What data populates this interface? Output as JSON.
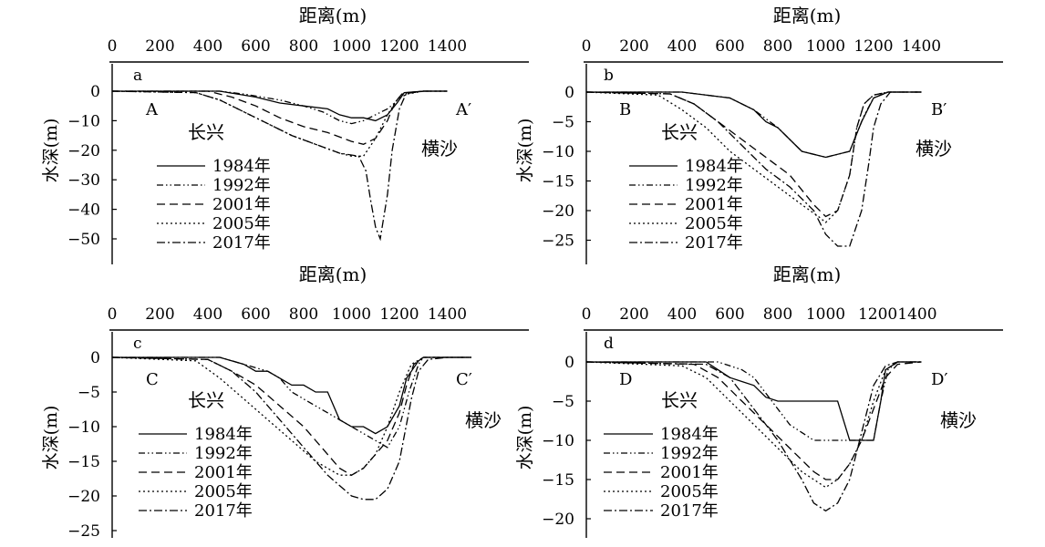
{
  "figure": {
    "description_free": true
  },
  "chart_data": [
    {
      "type": "line",
      "panel_letter": "a",
      "xlabel": "距离(m)",
      "ylabel": "水深(m)",
      "xticks": [
        "0",
        "200",
        "400",
        "600",
        "800",
        "1000",
        "1200",
        "1400"
      ],
      "yticks": [
        "0",
        "−10",
        "−20",
        "−30",
        "−40",
        "−50"
      ],
      "xlim": [
        0,
        1500
      ],
      "ylim": [
        -55,
        3
      ],
      "start_label": "A",
      "end_label": "A′",
      "left_bank": "长兴",
      "right_bank": "横沙",
      "legend_position": "lower-left",
      "series": [
        {
          "name": "1984年",
          "style": "solid",
          "x": [
            0,
            450,
            600,
            700,
            800,
            900,
            950,
            1000,
            1050,
            1100,
            1150,
            1190,
            1220,
            1300,
            1400
          ],
          "y": [
            0,
            0,
            -2,
            -4,
            -5,
            -6,
            -8,
            -9,
            -9,
            -10,
            -8,
            -4,
            -0.5,
            0,
            0
          ]
        },
        {
          "name": "1992年",
          "style": "dashdotdot",
          "x": [
            0,
            450,
            550,
            700,
            800,
            880,
            950,
            1000,
            1050,
            1100,
            1150,
            1180,
            1210,
            1300,
            1400
          ],
          "y": [
            0,
            0,
            -1,
            -3,
            -5,
            -7,
            -10,
            -11,
            -10,
            -8,
            -6,
            -4,
            -1,
            0,
            0
          ]
        },
        {
          "name": "2001年",
          "style": "dash",
          "x": [
            0,
            400,
            500,
            600,
            700,
            800,
            900,
            1000,
            1050,
            1100,
            1150,
            1180,
            1210,
            1300,
            1400
          ],
          "y": [
            0,
            0,
            -2,
            -5,
            -9,
            -12,
            -14,
            -17,
            -18,
            -16,
            -10,
            -4,
            -1,
            0,
            0
          ]
        },
        {
          "name": "2005年",
          "style": "dot",
          "x": [
            0,
            350,
            450,
            550,
            650,
            750,
            850,
            950,
            1000,
            1050,
            1100,
            1150,
            1190,
            1230,
            1300,
            1400
          ],
          "y": [
            0,
            -0.5,
            -3,
            -7,
            -11,
            -15,
            -18,
            -21,
            -22,
            -22,
            -16,
            -8,
            -3,
            -1,
            0,
            0
          ]
        },
        {
          "name": "2017年",
          "style": "dashdot",
          "x": [
            0,
            350,
            450,
            550,
            650,
            750,
            850,
            950,
            1030,
            1060,
            1080,
            1100,
            1120,
            1150,
            1170,
            1200,
            1230,
            1300,
            1400
          ],
          "y": [
            0,
            -0.5,
            -3,
            -7,
            -11,
            -15,
            -18,
            -21,
            -22,
            -27,
            -37,
            -46,
            -50,
            -35,
            -20,
            -6,
            -0.5,
            0,
            0
          ]
        }
      ]
    },
    {
      "type": "line",
      "panel_letter": "b",
      "xlabel": "距离(m)",
      "ylabel": "水深(m)",
      "xticks": [
        "0",
        "200",
        "400",
        "600",
        "800",
        "1000",
        "1200",
        "1400"
      ],
      "yticks": [
        "0",
        "−5",
        "−10",
        "−15",
        "−20",
        "−25"
      ],
      "xlim": [
        0,
        1500
      ],
      "ylim": [
        -28,
        1.6
      ],
      "start_label": "B",
      "end_label": "B′",
      "left_bank": "长兴",
      "right_bank": "横沙",
      "legend_position": "lower-left",
      "series": [
        {
          "name": "1984年",
          "style": "solid",
          "x": [
            0,
            400,
            600,
            700,
            750,
            800,
            850,
            900,
            1000,
            1100,
            1120,
            1150,
            1200,
            1260,
            1300,
            1400
          ],
          "y": [
            0,
            0,
            -1,
            -3,
            -5,
            -6,
            -8,
            -10,
            -11,
            -10,
            -8,
            -5,
            -1,
            0,
            0,
            0
          ]
        },
        {
          "name": "1992年",
          "style": "dashdotdot",
          "x": [
            0,
            400,
            600,
            700,
            800,
            850,
            900,
            1000,
            1100,
            1130,
            1160,
            1200,
            1260,
            1300,
            1400
          ],
          "y": [
            0,
            0,
            -1,
            -3,
            -6,
            -8,
            -10,
            -11,
            -10,
            -7,
            -4,
            -1,
            0,
            0,
            0
          ]
        },
        {
          "name": "2001年",
          "style": "dash",
          "x": [
            0,
            350,
            450,
            550,
            650,
            750,
            850,
            950,
            1000,
            1050,
            1100,
            1130,
            1160,
            1200,
            1260,
            1300,
            1400
          ],
          "y": [
            0,
            -0.3,
            -2,
            -5,
            -8,
            -11,
            -14,
            -19,
            -21,
            -20,
            -14,
            -6,
            -2,
            -0.5,
            0,
            0,
            0
          ]
        },
        {
          "name": "2005年",
          "style": "dot",
          "x": [
            0,
            300,
            400,
            500,
            600,
            700,
            800,
            900,
            970,
            1000,
            1050,
            1100,
            1130,
            1160,
            1200,
            1260,
            1300,
            1400
          ],
          "y": [
            0,
            -0.5,
            -3,
            -6,
            -10,
            -13,
            -16,
            -19,
            -21,
            -22,
            -20,
            -14,
            -6,
            -2,
            -0.5,
            0,
            0,
            0
          ]
        },
        {
          "name": "2017年",
          "style": "dashdot",
          "x": [
            0,
            350,
            450,
            550,
            650,
            750,
            850,
            950,
            1000,
            1050,
            1100,
            1150,
            1180,
            1200,
            1230,
            1270,
            1300,
            1400
          ],
          "y": [
            0,
            -0.3,
            -2,
            -5,
            -9,
            -13,
            -16,
            -20,
            -24,
            -26,
            -26,
            -20,
            -12,
            -6,
            -2,
            0,
            0,
            0
          ]
        }
      ]
    },
    {
      "type": "line",
      "panel_letter": "c",
      "xlabel": "距离(m)",
      "ylabel": "水深(m)",
      "xticks": [
        "0",
        "200",
        "400",
        "600",
        "800",
        "1000",
        "1200",
        "1400"
      ],
      "yticks": [
        "0",
        "−5",
        "−10",
        "−15",
        "−20",
        "−25"
      ],
      "xlim": [
        0,
        1500
      ],
      "ylim": [
        -25,
        1.5
      ],
      "start_label": "C",
      "end_label": "C′",
      "left_bank": "长兴",
      "right_bank": "横沙",
      "legend_position": "lower-left",
      "series": [
        {
          "name": "1984年",
          "style": "solid",
          "x": [
            0,
            450,
            550,
            600,
            650,
            700,
            750,
            800,
            850,
            900,
            950,
            1000,
            1050,
            1100,
            1150,
            1200,
            1230,
            1280,
            1300,
            1400,
            1500
          ],
          "y": [
            0,
            0,
            -1,
            -2,
            -2,
            -3,
            -4,
            -4,
            -5,
            -5,
            -9,
            -10,
            -10,
            -11,
            -10,
            -7,
            -3,
            -0.5,
            0,
            0,
            0
          ]
        },
        {
          "name": "1992年",
          "style": "dashdotdot",
          "x": [
            0,
            450,
            550,
            650,
            700,
            750,
            800,
            850,
            900,
            950,
            1000,
            1050,
            1100,
            1150,
            1200,
            1240,
            1280,
            1300,
            1400,
            1500
          ],
          "y": [
            0,
            0,
            -1,
            -2,
            -3,
            -5,
            -6,
            -7,
            -8,
            -9,
            -10,
            -11,
            -12,
            -13,
            -10,
            -5,
            -1,
            0,
            0,
            0
          ]
        },
        {
          "name": "2001年",
          "style": "dash",
          "x": [
            0,
            400,
            500,
            600,
            700,
            800,
            900,
            950,
            1000,
            1050,
            1100,
            1150,
            1200,
            1230,
            1260,
            1300,
            1400,
            1500
          ],
          "y": [
            0,
            -0.3,
            -2,
            -4,
            -7,
            -10,
            -14,
            -16,
            -17,
            -16,
            -14,
            -12,
            -8,
            -4,
            -1,
            0,
            0,
            0
          ]
        },
        {
          "name": "2005年",
          "style": "dot",
          "x": [
            0,
            350,
            450,
            550,
            650,
            750,
            850,
            950,
            1000,
            1050,
            1100,
            1150,
            1200,
            1250,
            1300,
            1400,
            1500
          ],
          "y": [
            0,
            -0.5,
            -3,
            -6,
            -9,
            -12,
            -15,
            -17,
            -17,
            -16,
            -14,
            -10,
            -5,
            -1,
            0,
            0,
            0
          ]
        },
        {
          "name": "2017年",
          "style": "dashdot",
          "x": [
            0,
            400,
            500,
            600,
            700,
            800,
            900,
            1000,
            1050,
            1100,
            1150,
            1200,
            1250,
            1280,
            1320,
            1400,
            1500
          ],
          "y": [
            0,
            -0.3,
            -2,
            -5,
            -9,
            -13,
            -17,
            -20,
            -20.5,
            -20.5,
            -19,
            -15,
            -6,
            -2,
            -0.3,
            0,
            0
          ]
        }
      ]
    },
    {
      "type": "line",
      "panel_letter": "d",
      "xlabel": "距离(m)",
      "ylabel": "水深(m)",
      "xticks": [
        "0",
        "200",
        "400",
        "600",
        "800",
        "1000",
        "12001400"
      ],
      "yticks": [
        "0",
        "−5",
        "−10",
        "−15",
        "−20"
      ],
      "xlim": [
        0,
        1500
      ],
      "ylim": [
        -21,
        1.5
      ],
      "start_label": "D",
      "end_label": "D′",
      "left_bank": "长兴",
      "right_bank": "横沙",
      "legend_position": "lower-left",
      "series": [
        {
          "name": "1984年",
          "style": "solid",
          "x": [
            0,
            500,
            550,
            600,
            650,
            700,
            750,
            800,
            900,
            1000,
            1050,
            1100,
            1150,
            1200,
            1230,
            1250,
            1300,
            1400
          ],
          "y": [
            0,
            0,
            -1,
            -2,
            -2.5,
            -3,
            -4.5,
            -5,
            -5,
            -5,
            -5,
            -10,
            -10,
            -10,
            -5,
            -1,
            0,
            0
          ]
        },
        {
          "name": "1992年",
          "style": "dashdotdot",
          "x": [
            0,
            550,
            600,
            650,
            700,
            750,
            800,
            850,
            900,
            950,
            1000,
            1100,
            1200,
            1230,
            1260,
            1300,
            1400
          ],
          "y": [
            0,
            0,
            -0.5,
            -1,
            -2,
            -4,
            -6,
            -8,
            -9,
            -10,
            -10,
            -10,
            -10,
            -5,
            -1,
            0,
            0
          ]
        },
        {
          "name": "2001年",
          "style": "dash",
          "x": [
            0,
            450,
            550,
            650,
            750,
            850,
            950,
            1000,
            1050,
            1100,
            1150,
            1200,
            1250,
            1300,
            1400
          ],
          "y": [
            0,
            -0.3,
            -2,
            -5,
            -8,
            -11,
            -14,
            -15,
            -15,
            -13,
            -10,
            -6,
            -2,
            -0.3,
            0
          ]
        },
        {
          "name": "2005年",
          "style": "dot",
          "x": [
            0,
            400,
            500,
            600,
            700,
            800,
            900,
            1000,
            1050,
            1100,
            1150,
            1200,
            1250,
            1300,
            1400
          ],
          "y": [
            0,
            -0.5,
            -2,
            -5,
            -8,
            -11,
            -14,
            -16,
            -15,
            -13,
            -10,
            -5,
            -1,
            0,
            0
          ]
        },
        {
          "name": "2017年",
          "style": "dashdot",
          "x": [
            0,
            500,
            600,
            700,
            800,
            900,
            950,
            1000,
            1050,
            1100,
            1150,
            1200,
            1250,
            1300,
            1400
          ],
          "y": [
            0,
            -0.3,
            -2,
            -6,
            -10,
            -15,
            -18,
            -19,
            -18,
            -15,
            -9,
            -3,
            -0.5,
            0,
            0
          ]
        }
      ]
    }
  ]
}
